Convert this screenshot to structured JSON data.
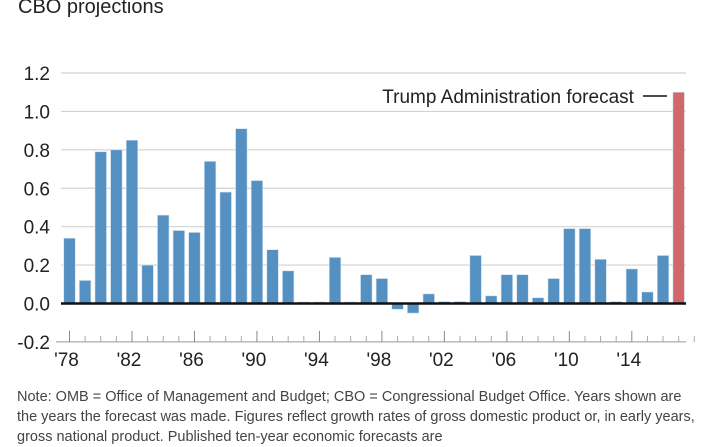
{
  "header": {
    "subtitle": "CBO projections"
  },
  "chart_data": {
    "type": "bar",
    "title": "",
    "subtitle": "CBO projections",
    "xlabel": "",
    "ylabel": "",
    "ylim": [
      -0.2,
      1.2
    ],
    "yticks": [
      1.2,
      1.0,
      0.8,
      0.6,
      0.4,
      0.2,
      0.0,
      -0.2
    ],
    "ytick_labels": [
      "1.2",
      "1.0",
      "0.8",
      "0.6",
      "0.4",
      "0.2",
      "0.0",
      "-0.2"
    ],
    "grid": true,
    "x": [
      1978,
      1979,
      1980,
      1981,
      1982,
      1983,
      1984,
      1985,
      1986,
      1987,
      1988,
      1989,
      1990,
      1991,
      1992,
      1993,
      1994,
      1995,
      1996,
      1997,
      1998,
      1999,
      2000,
      2001,
      2002,
      2003,
      2004,
      2005,
      2006,
      2007,
      2008,
      2009,
      2010,
      2011,
      2012,
      2013,
      2014,
      2015,
      2016,
      2017
    ],
    "xtick_labels": [
      {
        "year": 1978,
        "label": "'78"
      },
      {
        "year": 1982,
        "label": "'82"
      },
      {
        "year": 1986,
        "label": "'86"
      },
      {
        "year": 1990,
        "label": "'90"
      },
      {
        "year": 1994,
        "label": "'94"
      },
      {
        "year": 1998,
        "label": "'98"
      },
      {
        "year": 2002,
        "label": "'02"
      },
      {
        "year": 2006,
        "label": "'06"
      },
      {
        "year": 2010,
        "label": "'10"
      },
      {
        "year": 2014,
        "label": "'14"
      }
    ],
    "series": [
      {
        "name": "CBO projections",
        "color": "#5590c2",
        "values": [
          0.34,
          0.12,
          0.79,
          0.8,
          0.85,
          0.2,
          0.46,
          0.38,
          0.37,
          0.74,
          0.58,
          0.91,
          0.64,
          0.28,
          0.17,
          0.0,
          0.0,
          0.24,
          0.0,
          0.15,
          0.13,
          -0.03,
          -0.05,
          0.05,
          0.01,
          0.01,
          0.25,
          0.04,
          0.15,
          0.15,
          0.03,
          0.13,
          0.39,
          0.39,
          0.23,
          0.01,
          0.18,
          0.06,
          0.25,
          null
        ]
      },
      {
        "name": "Trump Administration forecast",
        "color": "#cf676b",
        "values": [
          null,
          null,
          null,
          null,
          null,
          null,
          null,
          null,
          null,
          null,
          null,
          null,
          null,
          null,
          null,
          null,
          null,
          null,
          null,
          null,
          null,
          null,
          null,
          null,
          null,
          null,
          null,
          null,
          null,
          null,
          null,
          null,
          null,
          null,
          null,
          null,
          null,
          null,
          null,
          1.1
        ]
      }
    ],
    "annotations": [
      {
        "text": "Trump Administration forecast",
        "points_to": 2017
      }
    ],
    "legend": "none"
  },
  "note": {
    "text": "Note: OMB = Office of Management and Budget; CBO = Congressional Budget Office. Years shown are the years the forecast was made. Figures reflect growth rates of gross domestic product or, in early years, gross national product. Published ten-year economic forecasts are"
  }
}
